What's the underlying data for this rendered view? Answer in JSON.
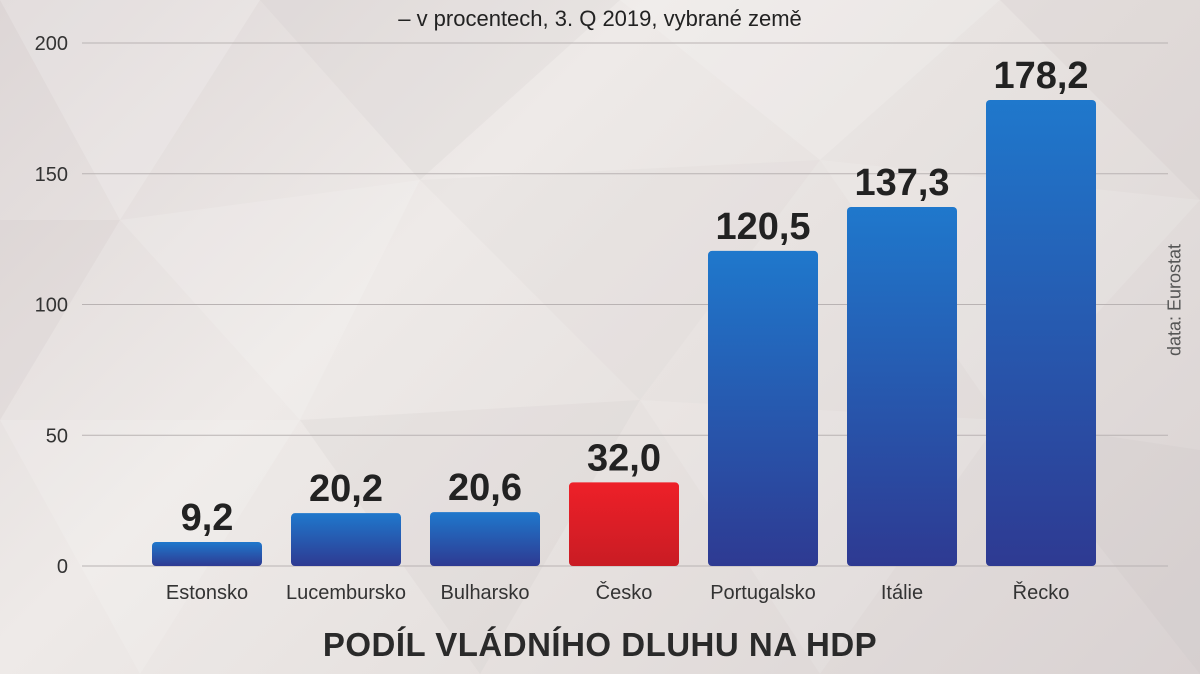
{
  "chart_data": {
    "type": "bar",
    "title": "PODÍL VLÁDNÍHO DLUHU NA HDP",
    "subtitle": "– v procentech, 3. Q 2019, vybrané země",
    "source": "data: Eurostat",
    "categories": [
      "Estonsko",
      "Lucembursko",
      "Bulharsko",
      "Česko",
      "Portugalsko",
      "Itálie",
      "Řecko"
    ],
    "values": [
      9.2,
      20.2,
      20.6,
      32.0,
      120.5,
      137.3,
      178.2
    ],
    "value_labels": [
      "9,2",
      "20,2",
      "20,6",
      "32,0",
      "120,5",
      "137,3",
      "178,2"
    ],
    "highlight_category": "Česko",
    "ylim": [
      0,
      200
    ],
    "yticks": [
      0,
      50,
      100,
      150,
      200
    ],
    "grid": true,
    "colors": {
      "bar_top": "#1f78cc",
      "bar_bottom": "#2e3a92",
      "highlight_top": "#ee2028",
      "highlight_bottom": "#c91c24"
    }
  }
}
